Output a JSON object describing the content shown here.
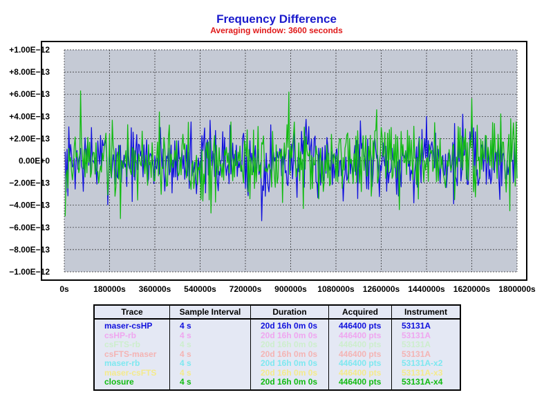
{
  "chart_data": {
    "type": "line",
    "title": "Frequency Difference",
    "subtitle": "Averaging window: 3600 seconds",
    "xlabel": "",
    "ylabel": "",
    "xlim": [
      0,
      1800000
    ],
    "ylim": [
      -1e-12,
      1e-12
    ],
    "grid": true,
    "x_ticks": [
      0,
      180000,
      360000,
      540000,
      720000,
      900000,
      1080000,
      1260000,
      1440000,
      1620000,
      1800000
    ],
    "x_tick_labels": [
      "0s",
      "180000s",
      "360000s",
      "540000s",
      "720000s",
      "900000s",
      "1080000s",
      "1260000s",
      "1440000s",
      "1620000s",
      "1800000s"
    ],
    "y_ticks": [
      1e-12,
      8e-13,
      6e-13,
      4e-13,
      2e-13,
      0,
      -2e-13,
      -4e-13,
      -6e-13,
      -8e-13,
      -1e-12
    ],
    "y_tick_labels": [
      "+1.00E−12",
      "+8.00E−13",
      "+6.00E−13",
      "+4.00E−13",
      "+2.00E−13",
      "0.00E+0",
      "−2.00E−13",
      "−4.00E−13",
      "−6.00E−13",
      "−8.00E−13",
      "−1.00E−12"
    ],
    "series": [
      {
        "name": "maser-csHP",
        "color": "#1010dd",
        "x_step": 3600,
        "x_start": 3600,
        "amplitude": 1.55e-13,
        "seed": 7,
        "extremes": [
          [
            7200,
            -2.8e-13
          ],
          [
            108000,
            3e-13
          ],
          [
            504000,
            3.5e-13
          ],
          [
            784800,
            -5.4e-13
          ],
          [
            1177200,
            3.6e-13
          ],
          [
            1440000,
            4e-13
          ],
          [
            1584000,
            4.2e-13
          ]
        ]
      },
      {
        "name": "closure",
        "color": "#11bb11",
        "x_step": 3600,
        "x_start": 3600,
        "amplitude": 1.65e-13,
        "seed": 19,
        "extremes": [
          [
            3600,
            -5e-13
          ],
          [
            64800,
            6.3e-13
          ],
          [
            223200,
            -5.2e-13
          ],
          [
            378000,
            4.4e-13
          ],
          [
            583200,
            -4.7e-13
          ],
          [
            892800,
            6.2e-13
          ],
          [
            950400,
            -4.3e-13
          ],
          [
            1242000,
            4.6e-13
          ],
          [
            1332000,
            -4.4e-13
          ],
          [
            1620000,
            5.6e-13
          ],
          [
            1771200,
            -4.5e-13
          ],
          [
            1796400,
            3.5e-13
          ]
        ]
      }
    ]
  },
  "legend": {
    "headers": [
      "Trace",
      "Sample Interval",
      "Duration",
      "Acquired",
      "Instrument"
    ],
    "rows": [
      {
        "trace": "maser-csHP",
        "interval": "4 s",
        "duration": "20d 16h 0m 0s",
        "acquired": "446400 pts",
        "instrument": "53131A",
        "color": "#1010dd"
      },
      {
        "trace": "csHP-rb",
        "interval": "4 s",
        "duration": "20d 16h 0m 0s",
        "acquired": "446400 pts",
        "instrument": "53131A",
        "color": "#f0a6f0"
      },
      {
        "trace": "csFTS-rb",
        "interval": "4 s",
        "duration": "20d 16h 0m 0s",
        "acquired": "446400 pts",
        "instrument": "53131A",
        "color": "#cdeecd"
      },
      {
        "trace": "csFTS-maser",
        "interval": "4 s",
        "duration": "20d 16h 0m 0s",
        "acquired": "446400 pts",
        "instrument": "53131A",
        "color": "#f4b4b4"
      },
      {
        "trace": "maser-rb",
        "interval": "4 s",
        "duration": "20d 16h 0m 0s",
        "acquired": "446400 pts",
        "instrument": "53131A-x2",
        "color": "#7ee8f0"
      },
      {
        "trace": "maser-csFTS",
        "interval": "4 s",
        "duration": "20d 16h 0m 0s",
        "acquired": "446400 pts",
        "instrument": "53131A-x3",
        "color": "#f4ea8c"
      },
      {
        "trace": "closure",
        "interval": "4 s",
        "duration": "20d 16h 0m 0s",
        "acquired": "446400 pts",
        "instrument": "53131A-x4",
        "color": "#11bb11"
      }
    ]
  }
}
